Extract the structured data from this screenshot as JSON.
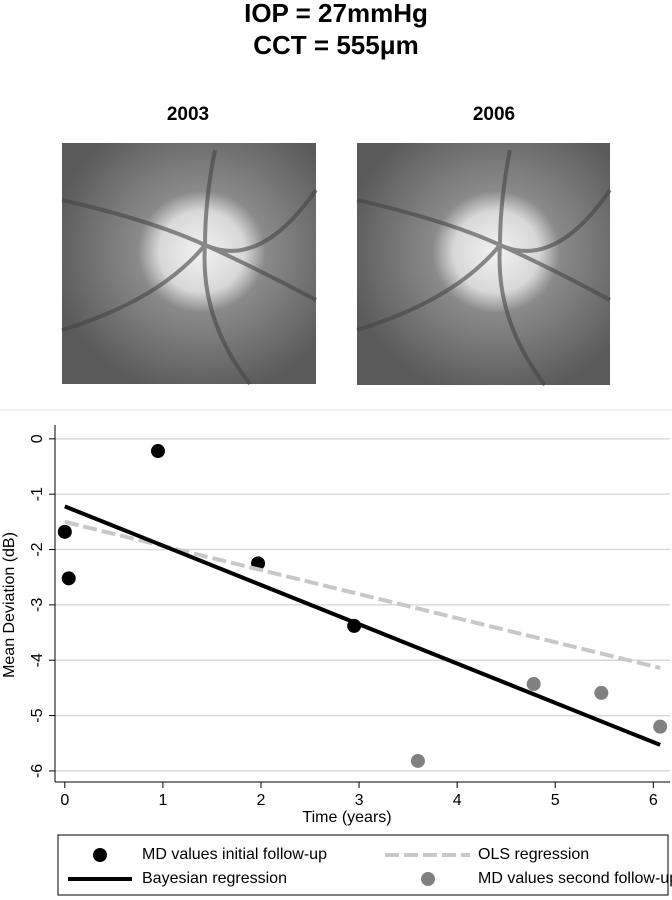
{
  "header": {
    "title_lines": [
      "IOP = 27mmHg",
      "CCT = 555μm"
    ]
  },
  "images": [
    {
      "label": "2003"
    },
    {
      "label": "2006"
    }
  ],
  "chart_data": {
    "type": "scatter",
    "x_label": "Time (years)",
    "y_label": "Mean Deviation (dB)",
    "xlim": [
      -0.1,
      6.17
    ],
    "ylim": [
      -6.2,
      0.25
    ],
    "xticks": [
      0,
      1,
      2,
      3,
      4,
      5,
      6
    ],
    "yticks": [
      0,
      -1,
      -2,
      -3,
      -4,
      -5,
      -6
    ],
    "grid": true,
    "series": [
      {
        "name": "MD values initial follow-up",
        "type": "scatter",
        "color": "#000000",
        "x": [
          0,
          0.04,
          0.95,
          1.97,
          2.95
        ],
        "values": [
          -1.68,
          -2.52,
          -0.22,
          -2.25,
          -3.38
        ]
      },
      {
        "name": "OLS regression",
        "type": "line",
        "dashed": true,
        "color": "#c8c8c8",
        "x": [
          0,
          6.07
        ],
        "values": [
          -1.5,
          -4.14
        ]
      },
      {
        "name": "Bayesian regression",
        "type": "line",
        "color": "#000000",
        "x": [
          0,
          6.07
        ],
        "values": [
          -1.22,
          -5.53
        ]
      },
      {
        "name": "MD values second follow-up",
        "type": "scatter",
        "color": "#808080",
        "x": [
          3.6,
          4.78,
          5.47,
          6.07
        ],
        "values": [
          -5.82,
          -4.43,
          -4.59,
          -5.2
        ]
      }
    ]
  }
}
